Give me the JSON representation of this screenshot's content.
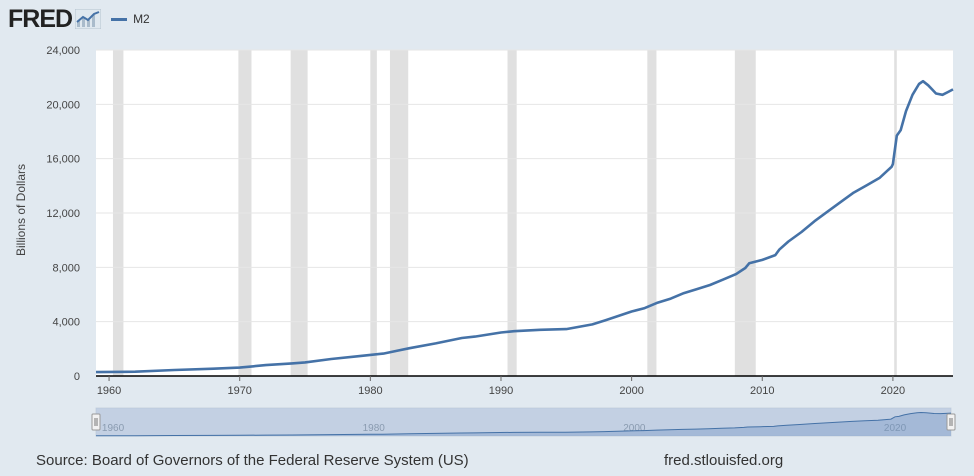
{
  "header": {
    "logo_text": "FRED",
    "logo_icon": "fred-chart-icon",
    "legend_label": "M2"
  },
  "colors": {
    "series": "#4572a7",
    "background": "#e1e9f0",
    "plot_bg": "#ffffff",
    "recession": "#e0e0e0",
    "navigator_fill": "#b8c8de"
  },
  "footer": {
    "source": "Source: Board of Governors of the Federal Reserve System (US)",
    "site": "fred.stlouisfed.org"
  },
  "navigator": {
    "labels": [
      "1960",
      "1980",
      "2000",
      "2020"
    ]
  },
  "chart_data": {
    "type": "line",
    "title": "",
    "xlabel": "",
    "ylabel": "Billions of Dollars",
    "xlim": [
      1959.0,
      2024.6
    ],
    "ylim": [
      0,
      24000
    ],
    "yticks": [
      0,
      4000,
      8000,
      12000,
      16000,
      20000,
      24000
    ],
    "ytick_labels": [
      "0",
      "4,000",
      "8,000",
      "12,000",
      "16,000",
      "20,000",
      "24,000"
    ],
    "xticks": [
      1960,
      1970,
      1980,
      1990,
      2000,
      2010,
      2020
    ],
    "xtick_labels": [
      "1960",
      "1970",
      "1980",
      "1990",
      "2000",
      "2010",
      "2020"
    ],
    "grid": true,
    "legend_position": "top-left",
    "recessions": [
      [
        1960.3,
        1961.1
      ],
      [
        1969.9,
        1970.9
      ],
      [
        1973.9,
        1975.2
      ],
      [
        1980.0,
        1980.5
      ],
      [
        1981.5,
        1982.9
      ],
      [
        1990.5,
        1991.2
      ],
      [
        2001.2,
        2001.9
      ],
      [
        2007.9,
        2009.5
      ],
      [
        2020.1,
        2020.3
      ]
    ],
    "series": [
      {
        "name": "M2",
        "x": [
          1959.0,
          1962,
          1965,
          1968,
          1970,
          1972,
          1974,
          1975,
          1977,
          1979,
          1980,
          1981,
          1982,
          1983,
          1985,
          1987,
          1988,
          1990,
          1991,
          1993,
          1995,
          1997,
          1998,
          2000,
          2001,
          2002,
          2003,
          2004,
          2005,
          2006,
          2007,
          2008,
          2008.7,
          2009,
          2010,
          2011,
          2011.3,
          2012,
          2013,
          2014,
          2015,
          2016,
          2017,
          2018,
          2019,
          2019.9,
          2020.0,
          2020.3,
          2020.6,
          2021,
          2021.5,
          2022.0,
          2022.3,
          2022.7,
          2023.0,
          2023.3,
          2023.8,
          2024.2,
          2024.6
        ],
        "y": [
          290,
          320,
          440,
          540,
          620,
          800,
          930,
          1000,
          1250,
          1450,
          1550,
          1650,
          1850,
          2050,
          2400,
          2800,
          2900,
          3200,
          3300,
          3400,
          3450,
          3800,
          4100,
          4750,
          5000,
          5400,
          5700,
          6100,
          6400,
          6700,
          7100,
          7500,
          7950,
          8300,
          8550,
          8900,
          9300,
          9900,
          10600,
          11400,
          12100,
          12800,
          13500,
          14050,
          14600,
          15400,
          15600,
          17700,
          18100,
          19500,
          20700,
          21500,
          21700,
          21400,
          21100,
          20800,
          20700,
          20900,
          21100
        ]
      }
    ]
  }
}
